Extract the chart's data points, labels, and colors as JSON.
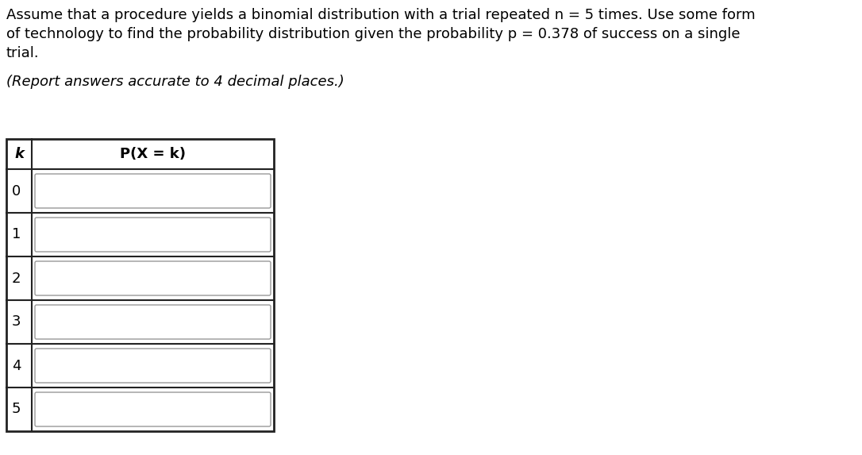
{
  "title_line1": "Assume that a procedure yields a binomial distribution with a trial repeated n = 5 times. Use some form",
  "title_line2": "of technology to find the probability distribution given the probability p = 0.378 of success on a single",
  "title_line3": "trial.",
  "subtitle_text": "(Report answers accurate to 4 decimal places.)",
  "k_values": [
    0,
    1,
    2,
    3,
    4,
    5
  ],
  "col_header_k": "k",
  "col_header_p": "P(X = k)",
  "background_color": "#ffffff",
  "text_color": "#000000",
  "title_fontsize": 13.0,
  "subtitle_fontsize": 13.0,
  "table_fontsize": 13.0,
  "inner_box_border_color": "#999999",
  "outer_border_color": "#222222",
  "n_eq": "n",
  "p_eq": "p",
  "n_val": "= 5",
  "p_val": "= 0.378"
}
